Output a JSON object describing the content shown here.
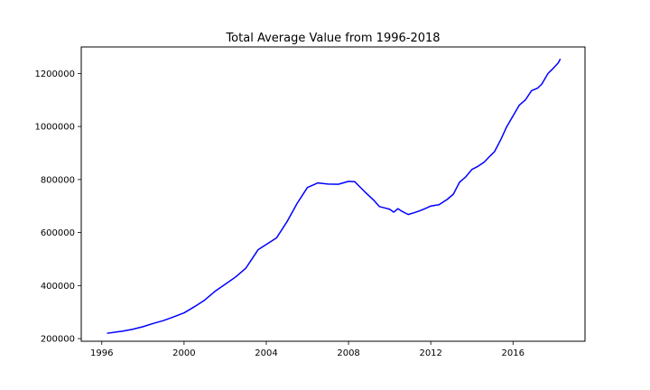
{
  "chart_data": {
    "type": "line",
    "title": "Total Average Value from 1996-2018",
    "xlabel": "",
    "ylabel": "",
    "xlim": [
      1995.0,
      2019.5
    ],
    "ylim": [
      190000,
      1300000
    ],
    "x_ticks": [
      1996,
      2000,
      2004,
      2008,
      2012,
      2016
    ],
    "y_ticks": [
      200000,
      400000,
      600000,
      800000,
      1000000,
      1200000
    ],
    "grid": false,
    "legend": "none",
    "line_color": "#0000ff",
    "series": [
      {
        "x": [
          1996.25,
          1997.0,
          1997.5,
          1998.0,
          1998.5,
          1999.0,
          1999.5,
          2000.0,
          2000.5,
          2001.0,
          2001.5,
          2002.0,
          2002.5,
          2003.0,
          2003.3,
          2003.6,
          2004.0,
          2004.5,
          2005.0,
          2005.5,
          2006.0,
          2006.5,
          2007.0,
          2007.5,
          2008.0,
          2008.3,
          2008.5,
          2008.8,
          2009.2,
          2009.5,
          2009.8,
          2010.0,
          2010.2,
          2010.4,
          2010.6,
          2010.9,
          2011.2,
          2011.5,
          2011.8,
          2012.0,
          2012.4,
          2012.8,
          2013.1,
          2013.4,
          2013.7,
          2014.0,
          2014.3,
          2014.6,
          2014.9,
          2015.1,
          2015.4,
          2015.7,
          2016.0,
          2016.3,
          2016.6,
          2016.9,
          2017.2,
          2017.4,
          2017.7,
          2017.9,
          2018.2,
          2018.3
        ],
        "values": [
          220000,
          228000,
          235000,
          245000,
          257000,
          268000,
          282000,
          297000,
          320000,
          345000,
          378000,
          405000,
          432000,
          465000,
          500000,
          535000,
          555000,
          580000,
          640000,
          710000,
          770000,
          787000,
          783000,
          782000,
          793000,
          792000,
          776000,
          753000,
          724000,
          698000,
          692000,
          688000,
          677000,
          690000,
          680000,
          668000,
          675000,
          683000,
          693000,
          700000,
          705000,
          725000,
          745000,
          790000,
          810000,
          838000,
          850000,
          866000,
          890000,
          905000,
          950000,
          1000000,
          1040000,
          1080000,
          1100000,
          1135000,
          1145000,
          1160000,
          1200000,
          1215000,
          1240000,
          1255000
        ]
      }
    ]
  }
}
